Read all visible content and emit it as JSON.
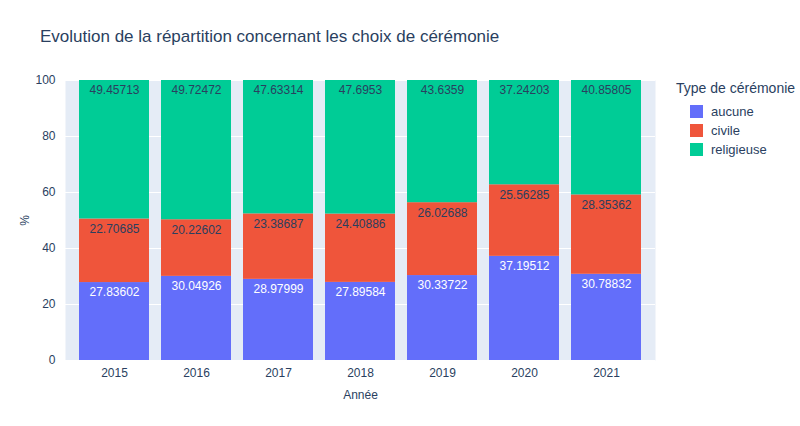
{
  "chart_data": {
    "type": "bar",
    "title": "Evolution de la répartition concernant les choix de cérémonie",
    "x_label": "Année",
    "y_label": "%",
    "legend_title": "Type de cérémonie",
    "categories": [
      "2015",
      "2016",
      "2017",
      "2018",
      "2019",
      "2020",
      "2021"
    ],
    "series": [
      {
        "name": "aucune",
        "color": "#636efa",
        "values": [
          27.83602,
          30.04926,
          28.97999,
          27.89584,
          30.33722,
          37.19512,
          30.78832
        ]
      },
      {
        "name": "civile",
        "color": "#ef553b",
        "values": [
          22.70685,
          20.22602,
          23.38687,
          24.40886,
          26.02688,
          25.56285,
          28.35362
        ]
      },
      {
        "name": "religieuse",
        "color": "#00cc96",
        "values": [
          49.45713,
          49.72472,
          47.63314,
          47.6953,
          43.6359,
          37.24203,
          40.85805
        ]
      }
    ],
    "stacked": true,
    "data_labels": true,
    "ylim": [
      0,
      100
    ],
    "yticks": [
      0,
      20,
      40,
      60,
      80,
      100
    ],
    "grid": true,
    "legend": "right"
  }
}
